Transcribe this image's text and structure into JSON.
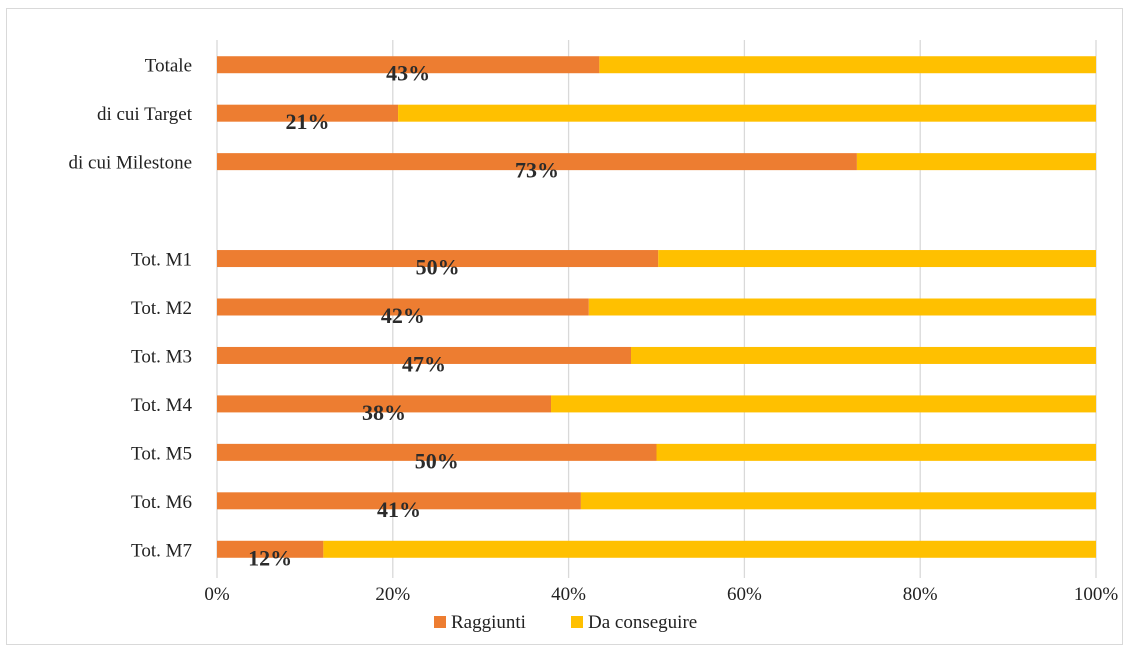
{
  "chart_data": {
    "type": "bar",
    "orientation": "horizontal",
    "stacked": "percent",
    "categories": [
      "Totale",
      "di cui Target",
      "di cui Milestone",
      "",
      "Tot. M1",
      "Tot. M2",
      "Tot. M3",
      "Tot. M4",
      "Tot. M5",
      "Tot. M6",
      "Tot. M7"
    ],
    "series": [
      {
        "name": "Raggiunti",
        "color": "#ed7d31",
        "values": [
          43.5,
          20.6,
          72.8,
          null,
          50.2,
          42.3,
          47.1,
          38.0,
          50.0,
          41.4,
          12.1
        ],
        "labels": [
          "43%",
          "21%",
          "73%",
          "",
          "50%",
          "42%",
          "47%",
          "38%",
          "50%",
          "41%",
          "12%"
        ]
      },
      {
        "name": "Da conseguire",
        "color": "#ffc000",
        "values": [
          56.5,
          79.4,
          27.2,
          null,
          49.8,
          57.7,
          52.9,
          62.0,
          50.0,
          58.6,
          87.9
        ]
      }
    ],
    "xlim": [
      0,
      100
    ],
    "xticks": [
      "0%",
      "20%",
      "40%",
      "60%",
      "80%",
      "100%"
    ],
    "grid": "vertical",
    "legend": "bottom"
  }
}
